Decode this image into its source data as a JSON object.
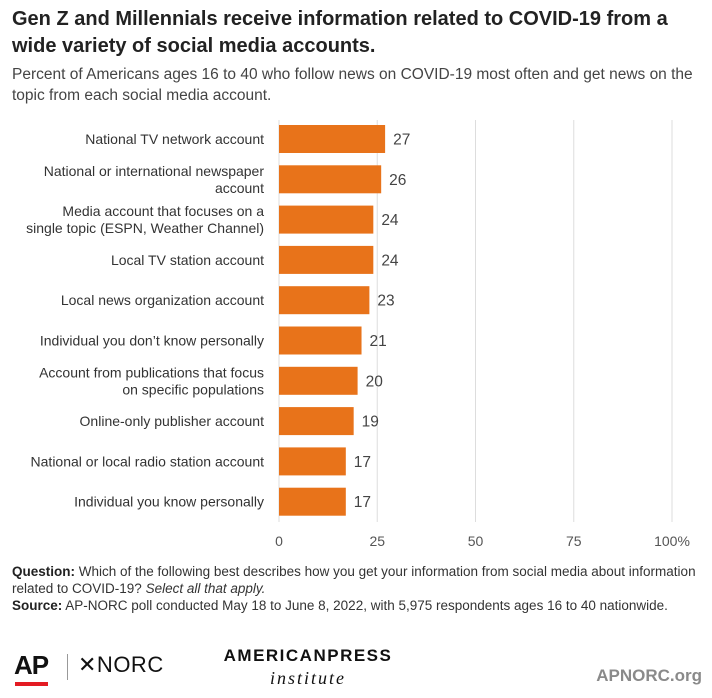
{
  "header": {
    "title": "Gen Z and Millennials receive information related to COVID-19 from a wide variety of social media accounts.",
    "subtitle": "Percent of Americans ages 16 to 40 who follow news on COVID-19 most often and get news on the topic from each social media account."
  },
  "chart_data": {
    "type": "bar",
    "orientation": "horizontal",
    "categories": [
      "National TV network account",
      "National or international newspaper account",
      "Media account that focuses on a single topic (ESPN, Weather Channel)",
      "Local TV station account",
      "Local news organization account",
      "Individual you don’t know personally",
      "Account from publications that focus on specific populations",
      "Online-only publisher account",
      "National or local radio station account",
      "Individual you know personally"
    ],
    "category_lines": [
      [
        "National TV network account"
      ],
      [
        "National or international newspaper",
        "account"
      ],
      [
        "Media account that focuses on a",
        "single topic (ESPN, Weather Channel)"
      ],
      [
        "Local TV station account"
      ],
      [
        "Local news organization account"
      ],
      [
        "Individual you don’t know personally"
      ],
      [
        "Account from publications that focus",
        "on specific populations"
      ],
      [
        "Online-only publisher account"
      ],
      [
        "National or local radio station account"
      ],
      [
        "Individual you know personally"
      ]
    ],
    "values": [
      27,
      26,
      24,
      24,
      23,
      21,
      20,
      19,
      17,
      17
    ],
    "xlim": [
      0,
      100
    ],
    "xticks": [
      0,
      25,
      50,
      75,
      100
    ],
    "xtick_labels": [
      "0",
      "25",
      "50",
      "75",
      "100%"
    ],
    "grid": true,
    "bar_color": "#e8731a",
    "gridline_color": "#dddddd"
  },
  "notes": {
    "question_label": "Question:",
    "question_text": "Which of the following best describes how you get your information from social media about information related to COVID-19?",
    "question_emphasis": "Select all that apply.",
    "source_label": "Source:",
    "source_text": "AP-NORC poll conducted May 18 to June 8, 2022, with 5,975 respondents ages 16 to 40 nationwide."
  },
  "footer": {
    "ap_logo": "AP",
    "norc_logo": "✕NORC",
    "api_logo_top": "AMERICANPRESS",
    "api_logo_bottom": "institute",
    "site": "APNORC.org"
  }
}
